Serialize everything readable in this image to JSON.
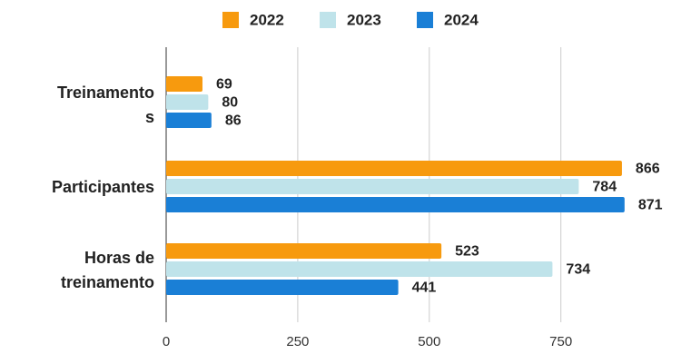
{
  "chart_data": {
    "type": "bar",
    "orientation": "horizontal",
    "categories": [
      [
        "Treinamento",
        "s"
      ],
      [
        "Participantes"
      ],
      [
        "Horas de",
        "treinamento"
      ]
    ],
    "series": [
      {
        "name": "2022",
        "color": "#f79a0e",
        "values": [
          69,
          866,
          523
        ]
      },
      {
        "name": "2023",
        "color": "#bfe3ea",
        "values": [
          80,
          784,
          734
        ]
      },
      {
        "name": "2024",
        "color": "#1a7fd6",
        "values": [
          86,
          871,
          441
        ]
      }
    ],
    "xlim": [
      0,
      900
    ],
    "xticks": [
      0,
      250,
      500,
      750
    ],
    "tick_labels": [
      "0",
      "250",
      "500",
      "750"
    ],
    "grid": true,
    "legend": "top-center",
    "title": "",
    "xlabel": "",
    "ylabel": ""
  }
}
